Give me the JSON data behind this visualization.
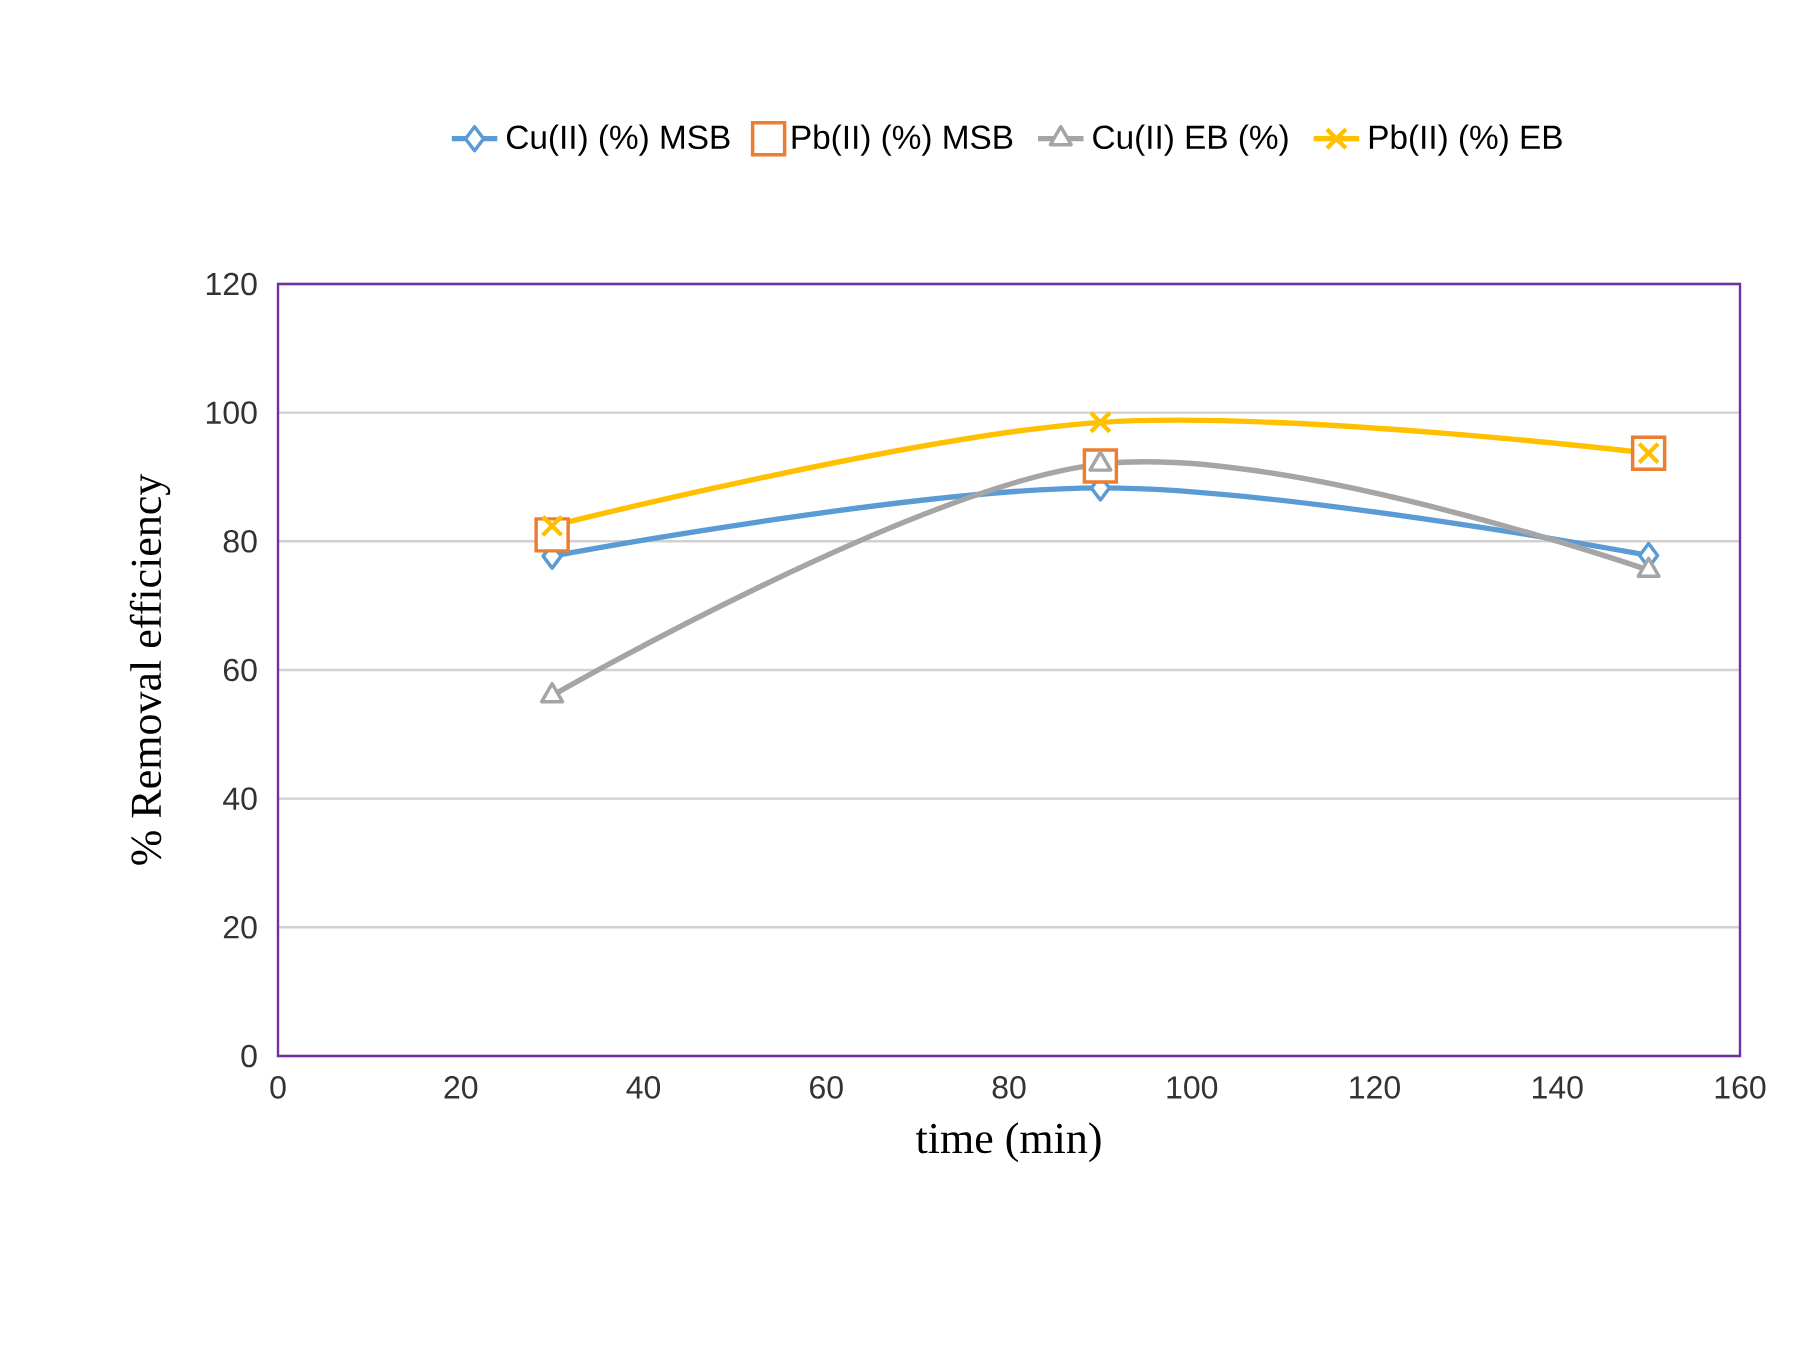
{
  "chart_data": {
    "type": "line",
    "xlabel": "time (min)",
    "ylabel": "% Removal efficiency",
    "xlim": [
      0,
      160
    ],
    "xticks": [
      0,
      20,
      40,
      60,
      80,
      100,
      120,
      140,
      160
    ],
    "ylim": [
      0,
      120
    ],
    "yticks": [
      0,
      20,
      40,
      60,
      80,
      100,
      120
    ],
    "grid": "y",
    "legend": "top",
    "series": [
      {
        "name": "Cu(II) (%) MSB",
        "color": "#5b9bd5",
        "marker": "diamond",
        "x": [
          30,
          90,
          150
        ],
        "values": [
          77.7,
          88.3,
          77.8
        ]
      },
      {
        "name": "Pb(II) (%) MSB",
        "color": "#ed7d31",
        "marker": "square",
        "type": "scatter",
        "x": [
          30,
          90,
          150
        ],
        "values": [
          81,
          91.7,
          93.7
        ]
      },
      {
        "name": "Cu(II) EB (%)",
        "color": "#a5a5a5",
        "marker": "triangle",
        "x": [
          30,
          90,
          150
        ],
        "values": [
          56,
          92,
          75.5
        ]
      },
      {
        "name": "Pb(II) (%) EB",
        "color": "#ffc000",
        "marker": "cross",
        "x": [
          30,
          90,
          150
        ],
        "values": [
          82.4,
          98.5,
          93.7
        ]
      }
    ]
  }
}
